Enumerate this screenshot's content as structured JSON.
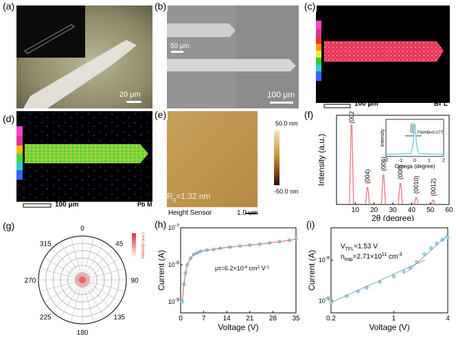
{
  "panels": {
    "a": {
      "label": "(a)",
      "scale": "20 μm"
    },
    "b": {
      "label": "(b)",
      "scale_small": "50 μm",
      "scale_large": "100 μm"
    },
    "c": {
      "label": "(c)",
      "scale": "100 μm",
      "element": "Br L"
    },
    "d": {
      "label": "(d)",
      "scale": "100 μm",
      "element": "Pb M"
    },
    "e": {
      "label": "(e)",
      "roughness": "Rq=1.32 nm",
      "roughness_main": "R",
      "roughness_sub": "q",
      "roughness_val": "=1.32 nm",
      "colorbar_top": "50.0 nm",
      "colorbar_bottom": "-50.0 nm",
      "sensor": "Height Sensor",
      "scale": "1.0 um"
    },
    "f": {
      "label": "(f)"
    },
    "g": {
      "label": "(g)"
    },
    "h": {
      "label": "(h)"
    },
    "i": {
      "label": "(i)"
    }
  },
  "chart_data": [
    {
      "id": "f",
      "type": "line",
      "xlabel": "2θ (degree)",
      "ylabel": "Intensity (a.u.)",
      "xlim": [
        0,
        60
      ],
      "xticks": [
        "10",
        "20",
        "30",
        "40",
        "50",
        "60"
      ],
      "peaks": [
        {
          "x": 8.0,
          "label": "(002)",
          "height": 0.95
        },
        {
          "x": 16.5,
          "label": "(004)",
          "height": 0.2
        },
        {
          "x": 25.0,
          "label": "(006)",
          "height": 0.35
        },
        {
          "x": 34.0,
          "label": "(008)",
          "height": 0.25
        },
        {
          "x": 42.5,
          "label": "(0010)",
          "height": 0.08
        },
        {
          "x": 51.5,
          "label": "(0012)",
          "height": 0.05
        }
      ],
      "inset": {
        "xlabel": "Omega (degree)",
        "ylabel": "Intensity",
        "xlim": [
          -2,
          2
        ],
        "xticks": [
          "-2",
          "-1",
          "0",
          "1",
          "2"
        ],
        "peak_label": "(002)",
        "fwhm": "FWHM=0.077"
      }
    },
    {
      "id": "g",
      "type": "polar",
      "angles": [
        "0",
        "45",
        "90",
        "135",
        "180",
        "225",
        "270",
        "315"
      ],
      "colorbar_label": "Intensity (a.u.)"
    },
    {
      "id": "h",
      "type": "scatter",
      "xlabel": "Voltage (V)",
      "ylabel": "Current (A)",
      "xlim": [
        0,
        35
      ],
      "xticks": [
        "0",
        "7",
        "14",
        "21",
        "28",
        "35"
      ],
      "yscale": "log",
      "yticks": [
        "10-9",
        "10-8",
        "10-7"
      ],
      "annotation": "μτ=6.2×10-4 cm2 V-1",
      "points": [
        [
          0.5,
          1e-09
        ],
        [
          1,
          3e-09
        ],
        [
          1.5,
          6e-09
        ],
        [
          2,
          1e-08
        ],
        [
          3,
          1.5e-08
        ],
        [
          4,
          1.9e-08
        ],
        [
          5,
          2.1e-08
        ],
        [
          6,
          2.3e-08
        ],
        [
          8,
          2.5e-08
        ],
        [
          10,
          2.6e-08
        ],
        [
          12,
          2.8e-08
        ],
        [
          15,
          3e-08
        ],
        [
          18,
          3.2e-08
        ],
        [
          21,
          3.4e-08
        ],
        [
          24,
          3.6e-08
        ],
        [
          27,
          3.9e-08
        ],
        [
          30,
          4.2e-08
        ],
        [
          33,
          4.6e-08
        ],
        [
          35,
          4.9e-08
        ]
      ]
    },
    {
      "id": "i",
      "type": "scatter",
      "xlabel": "Voltage (V)",
      "ylabel": "Current (A)",
      "xscale": "log",
      "yscale": "log",
      "xticks": [
        "0.2",
        "1",
        "4"
      ],
      "yticks": [
        "10-9",
        "10-8"
      ],
      "vtfl": "VTFL=1.53 V",
      "ntrap": "ntrap=2.71×1011 cm-3",
      "points": [
        [
          0.2,
          9e-10
        ],
        [
          0.3,
          1.3e-09
        ],
        [
          0.4,
          1.7e-09
        ],
        [
          0.5,
          2.1e-09
        ],
        [
          0.7,
          2.9e-09
        ],
        [
          1.0,
          4e-09
        ],
        [
          1.3,
          5.2e-09
        ],
        [
          1.53,
          6.5e-09
        ],
        [
          1.8,
          9e-09
        ],
        [
          2.2,
          1.4e-08
        ],
        [
          2.6,
          2e-08
        ],
        [
          3.0,
          2.6e-08
        ],
        [
          3.5,
          3.2e-08
        ],
        [
          4.0,
          3.6e-08
        ]
      ]
    }
  ]
}
